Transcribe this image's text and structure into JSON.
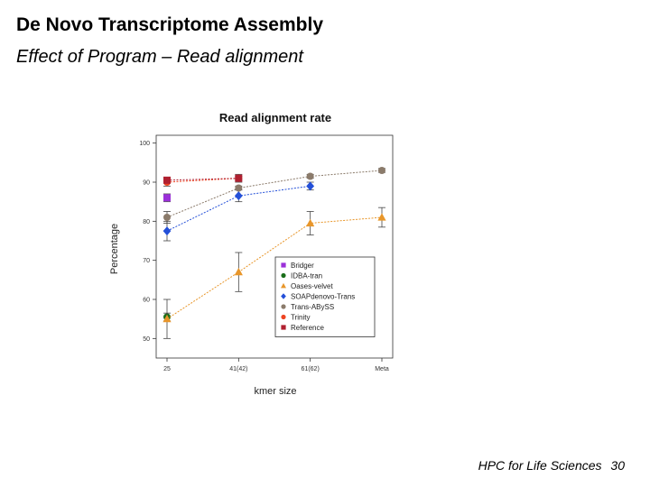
{
  "slide": {
    "title": "De Novo Transcriptome Assembly",
    "subtitle": "Effect of Program – Read alignment",
    "footer_text": "HPC for Life Sciences",
    "page_number": "30"
  },
  "chart_data": {
    "type": "line",
    "title": "Read alignment rate",
    "xlabel": "kmer size",
    "ylabel": "Percentage",
    "categories": [
      "25",
      "41(42)",
      "61(62)",
      "Meta"
    ],
    "ylim": [
      45,
      102
    ],
    "yticks": [
      50,
      60,
      70,
      80,
      90,
      100
    ],
    "grid": false,
    "legend_position": "bottom-right",
    "series": [
      {
        "name": "Bridger",
        "color": "#9b30d9",
        "marker": "square",
        "values": [
          86.0,
          null,
          null,
          null
        ],
        "err": [
          1.0,
          null,
          null,
          null
        ]
      },
      {
        "name": "IDBA-tran",
        "color": "#1a6e1a",
        "marker": "circle",
        "values": [
          55.5,
          null,
          null,
          null
        ],
        "err": [
          1.0,
          null,
          null,
          null
        ]
      },
      {
        "name": "Oases-velvet",
        "color": "#e8962a",
        "marker": "triangle",
        "values": [
          55.0,
          67.0,
          79.5,
          81.0
        ],
        "err": [
          5.0,
          5.0,
          3.0,
          2.5
        ]
      },
      {
        "name": "SOAPdenovo-Trans",
        "color": "#2450d8",
        "marker": "diamond",
        "values": [
          77.5,
          86.5,
          89.0,
          null
        ],
        "err": [
          2.5,
          1.5,
          1.0,
          null
        ]
      },
      {
        "name": "Trans-ABySS",
        "color": "#8b7b6b",
        "marker": "circle",
        "values": [
          81.0,
          88.5,
          91.5,
          93.0
        ],
        "err": [
          1.5,
          0.5,
          0.5,
          0.5
        ]
      },
      {
        "name": "Trinity",
        "color": "#ee4422",
        "marker": "circle",
        "values": [
          90.0,
          91.0,
          null,
          null
        ],
        "err": [
          1.0,
          1.0,
          null,
          null
        ]
      },
      {
        "name": "Reference",
        "color": "#b02030",
        "marker": "square",
        "values": [
          90.5,
          91.0,
          null,
          null
        ],
        "err": [
          0.5,
          0.5,
          null,
          null
        ]
      }
    ]
  }
}
